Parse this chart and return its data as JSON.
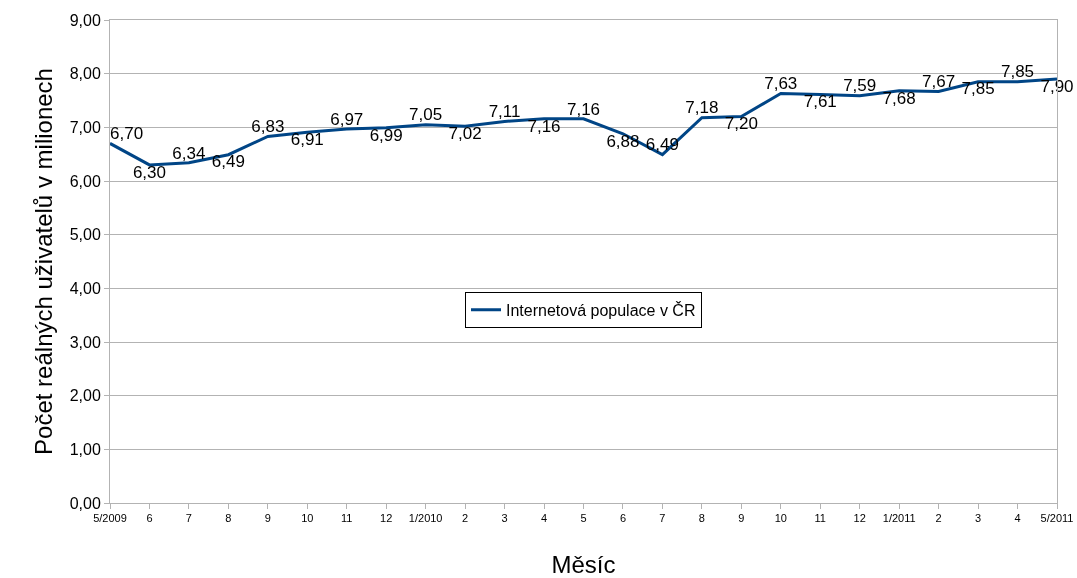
{
  "chart_data": {
    "type": "line",
    "xlabel": "Měsíc",
    "ylabel": "Počet reálných uživatelů v milionech",
    "categories": [
      "5/2009",
      "6",
      "7",
      "8",
      "9",
      "10",
      "11",
      "12",
      "1/2010",
      "2",
      "3",
      "4",
      "5",
      "6",
      "7",
      "8",
      "9",
      "10",
      "11",
      "12",
      "1/2011",
      "2",
      "3",
      "4",
      "5/2011"
    ],
    "series": [
      {
        "name": "Internetová populace v ČR",
        "color": "#004586",
        "values": [
          6.7,
          6.3,
          6.34,
          6.49,
          6.83,
          6.91,
          6.97,
          6.99,
          7.05,
          7.02,
          7.11,
          7.16,
          7.16,
          6.88,
          6.49,
          7.18,
          7.2,
          7.63,
          7.61,
          7.59,
          7.68,
          7.67,
          7.85,
          7.85,
          7.9
        ],
        "value_labels": [
          "6,70",
          "6,30",
          "6,34",
          "6,49",
          "6,83",
          "6,91",
          "6,97",
          "6,99",
          "7,05",
          "7,02",
          "7,11",
          "7,16",
          "7,16",
          "6,88",
          "6,49",
          "7,18",
          "7,20",
          "7,63",
          "7,61",
          "7,59",
          "7,68",
          "7,67",
          "7,85",
          "7,85",
          "7,90"
        ]
      }
    ],
    "ylim": [
      0,
      9
    ],
    "yticks": [
      {
        "value": 0,
        "label": "0,00"
      },
      {
        "value": 1,
        "label": "1,00"
      },
      {
        "value": 2,
        "label": "2,00"
      },
      {
        "value": 3,
        "label": "3,00"
      },
      {
        "value": 4,
        "label": "4,00"
      },
      {
        "value": 5,
        "label": "5,00"
      },
      {
        "value": 6,
        "label": "6,00"
      },
      {
        "value": 7,
        "label": "7,00"
      },
      {
        "value": 8,
        "label": "8,00"
      },
      {
        "value": 9,
        "label": "9,00"
      }
    ],
    "grid": "y",
    "legend": "center",
    "marker": "none",
    "line_style": "solid"
  }
}
